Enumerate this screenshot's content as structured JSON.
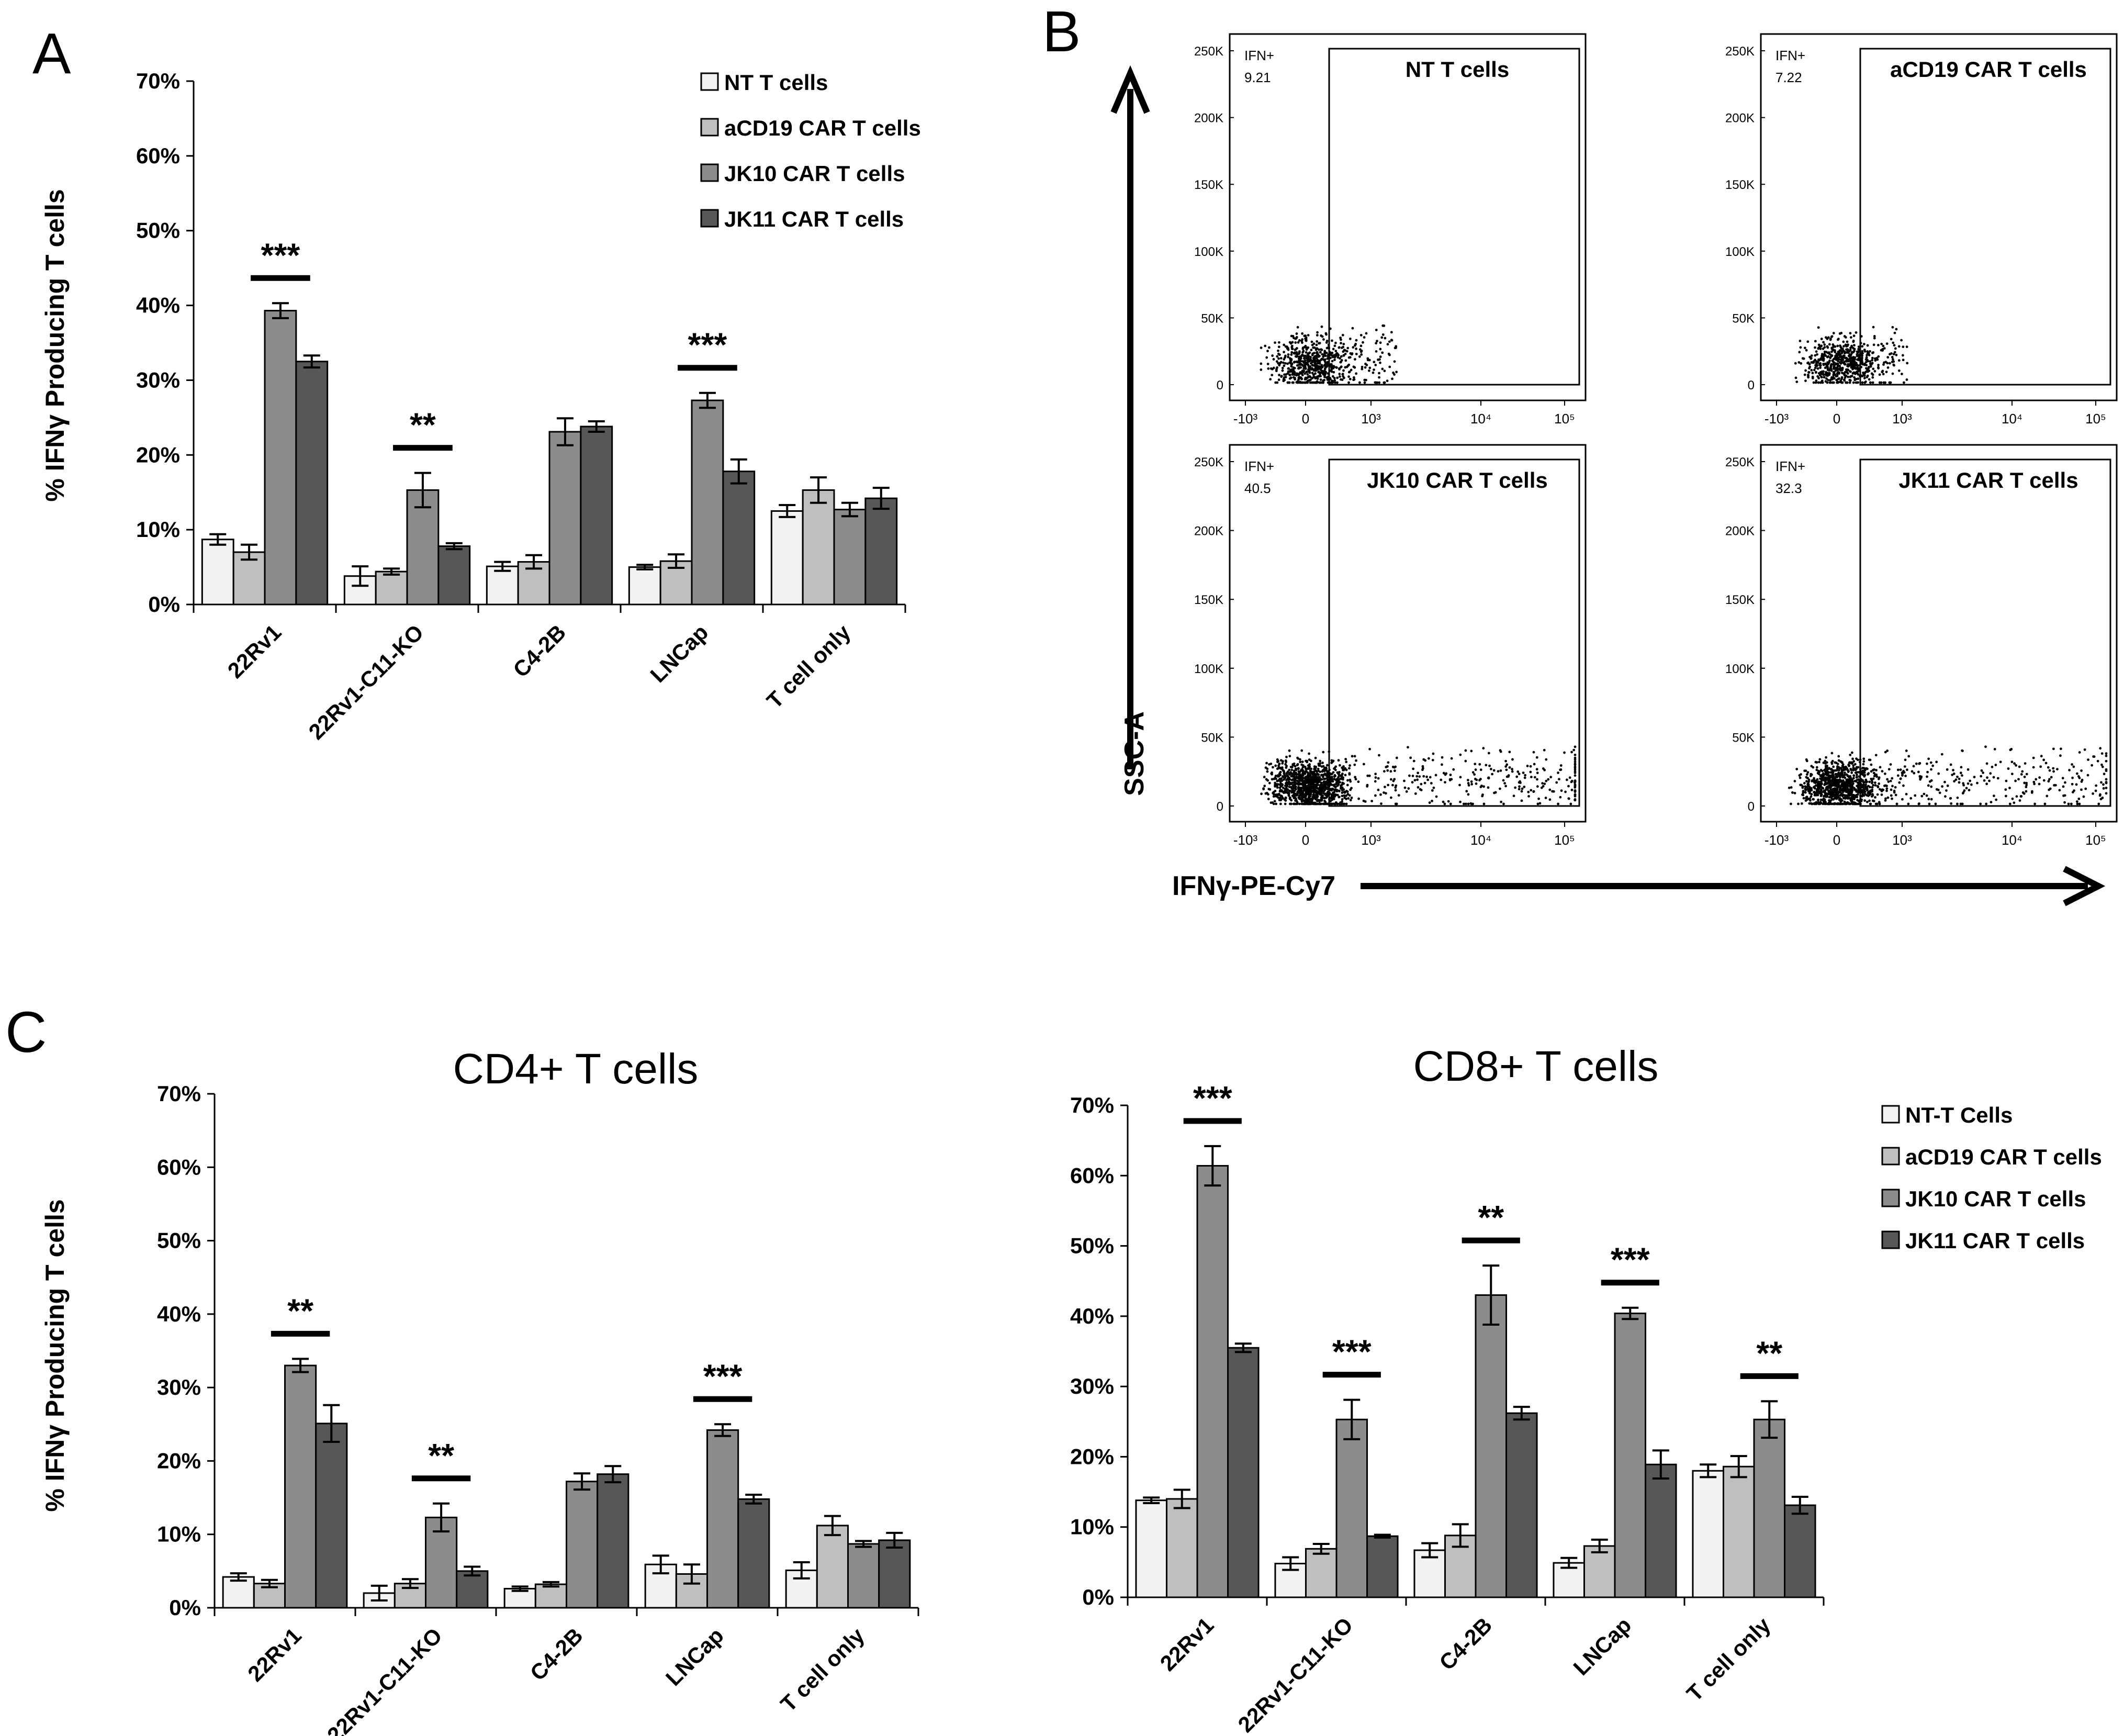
{
  "panel_labels": {
    "a": "A",
    "b": "B",
    "c": "C"
  },
  "colors": {
    "nt": "#f2f2f2",
    "acd19": "#bfbfbf",
    "jk10": "#8c8c8c",
    "jk11": "#575757",
    "stroke": "#000000"
  },
  "chart_data": [
    {
      "id": "A",
      "type": "bar",
      "title": "",
      "ylabel": "% IFNγ Producing T cells",
      "ylim": [
        0,
        70
      ],
      "yticks": [
        "0%",
        "10%",
        "20%",
        "30%",
        "40%",
        "50%",
        "60%",
        "70%"
      ],
      "categories": [
        "22Rv1",
        "22Rv1-C11-KO",
        "C4-2B",
        "LNCap",
        "T cell only"
      ],
      "series": [
        {
          "name": "NT T cells",
          "values": [
            8.7,
            3.8,
            5.1,
            5.0,
            12.5
          ],
          "errors": [
            0.7,
            1.3,
            0.6,
            0.3,
            0.8
          ]
        },
        {
          "name": "aCD19 CAR T cells",
          "values": [
            7.0,
            4.4,
            5.7,
            5.8,
            15.3
          ],
          "errors": [
            1.0,
            0.4,
            0.9,
            0.9,
            1.7
          ]
        },
        {
          "name": "JK10 CAR T cells",
          "values": [
            39.3,
            15.3,
            23.1,
            27.3,
            12.7
          ],
          "errors": [
            1.0,
            2.3,
            1.8,
            1.0,
            0.9
          ]
        },
        {
          "name": "JK11 CAR T cells",
          "values": [
            32.5,
            7.8,
            23.8,
            17.8,
            14.2
          ],
          "errors": [
            0.8,
            0.4,
            0.7,
            1.6,
            1.4
          ]
        }
      ],
      "significance": [
        {
          "category": "22Rv1",
          "label": "***"
        },
        {
          "category": "22Rv1-C11-KO",
          "label": "**"
        },
        {
          "category": "LNCap",
          "label": "***"
        }
      ]
    },
    {
      "id": "C-CD4",
      "type": "bar",
      "title": "CD4+ T cells",
      "ylabel": "% IFNγ Producing T cells",
      "ylim": [
        0,
        70
      ],
      "yticks": [
        "0%",
        "10%",
        "20%",
        "30%",
        "40%",
        "50%",
        "60%",
        "70%"
      ],
      "categories": [
        "22Rv1",
        "22Rv1-C11-KO",
        "C4-2B",
        "LNCap",
        "T cell only"
      ],
      "series": [
        {
          "name": "NT-T Cells",
          "values": [
            4.2,
            2.0,
            2.6,
            5.9,
            5.1
          ],
          "errors": [
            0.5,
            1.0,
            0.3,
            1.2,
            1.1
          ]
        },
        {
          "name": "aCD19 CAR T cells",
          "values": [
            3.3,
            3.3,
            3.2,
            4.6,
            11.2
          ],
          "errors": [
            0.5,
            0.6,
            0.3,
            1.3,
            1.3
          ]
        },
        {
          "name": "JK10 CAR T cells",
          "values": [
            33.0,
            12.3,
            17.2,
            24.2,
            8.7
          ],
          "errors": [
            0.9,
            1.9,
            1.1,
            0.8,
            0.4
          ]
        },
        {
          "name": "JK11 CAR T cells",
          "values": [
            25.1,
            5.0,
            18.2,
            14.8,
            9.2
          ],
          "errors": [
            2.5,
            0.6,
            1.1,
            0.6,
            1.0
          ]
        }
      ],
      "significance": [
        {
          "category": "22Rv1",
          "label": "**"
        },
        {
          "category": "22Rv1-C11-KO",
          "label": "**"
        },
        {
          "category": "LNCap",
          "label": "***"
        }
      ]
    },
    {
      "id": "C-CD8",
      "type": "bar",
      "title": "CD8+ T cells",
      "ylabel": "",
      "ylim": [
        0,
        70
      ],
      "yticks": [
        "0%",
        "10%",
        "20%",
        "30%",
        "40%",
        "50%",
        "60%",
        "70%"
      ],
      "categories": [
        "22Rv1",
        "22Rv1-C11-KO",
        "C4-2B",
        "LNCap",
        "T cell only"
      ],
      "series": [
        {
          "name": "NT-T Cells",
          "values": [
            13.8,
            4.8,
            6.7,
            4.9,
            18.0
          ],
          "errors": [
            0.4,
            0.9,
            1.0,
            0.7,
            0.9
          ]
        },
        {
          "name": "aCD19 CAR T cells",
          "values": [
            14.0,
            6.9,
            8.8,
            7.3,
            18.6
          ],
          "errors": [
            1.3,
            0.7,
            1.6,
            0.9,
            1.5
          ]
        },
        {
          "name": "JK10 CAR T cells",
          "values": [
            61.4,
            25.3,
            43.0,
            40.4,
            25.3
          ],
          "errors": [
            2.8,
            2.8,
            4.2,
            0.8,
            2.6
          ]
        },
        {
          "name": "JK11 CAR T cells",
          "values": [
            35.5,
            8.7,
            26.2,
            18.9,
            13.1
          ],
          "errors": [
            0.6,
            0.2,
            0.9,
            2.0,
            1.2
          ]
        }
      ],
      "significance": [
        {
          "category": "22Rv1",
          "label": "***"
        },
        {
          "category": "22Rv1-C11-KO",
          "label": "***"
        },
        {
          "category": "C4-2B",
          "label": "**"
        },
        {
          "category": "LNCap",
          "label": "***"
        },
        {
          "category": "T cell only",
          "label": "**"
        }
      ]
    },
    {
      "id": "B",
      "type": "scatter",
      "title": "",
      "xlabel": "IFNγ-PE-Cy7",
      "ylabel": "SSC-A",
      "y_ticks": [
        "0",
        "50K",
        "100K",
        "150K",
        "200K",
        "250K"
      ],
      "x_ticks": [
        "-10³",
        "0",
        "10³",
        "10⁴",
        "10⁵"
      ],
      "gate_label": "IFN+",
      "plots": [
        {
          "name": "NT T cells",
          "gate_percent": "9.21"
        },
        {
          "name": "aCD19 CAR T cells",
          "gate_percent": "7.22"
        },
        {
          "name": "JK10 CAR  T cells",
          "gate_percent": "40.5"
        },
        {
          "name": "JK11 CAR T cells",
          "gate_percent": "32.3"
        }
      ]
    }
  ]
}
